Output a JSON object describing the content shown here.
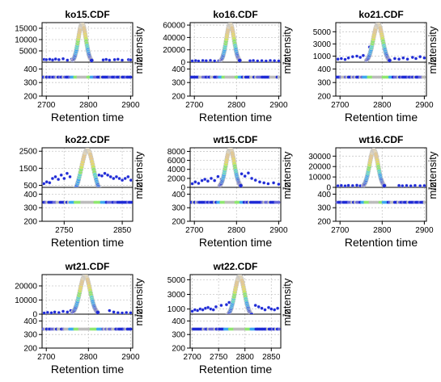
{
  "shared": {
    "xlabel": "Retention time",
    "ylabel_intensity": "intensity",
    "ylabel_mz": "m/z",
    "mz_ticks": [
      200,
      300,
      400
    ],
    "mz_ylim": [
      200,
      450
    ],
    "mz_band": 340,
    "peak_colors": [
      "#1f2bd6",
      "#2f6be8",
      "#3fa9f0",
      "#5fd9c9",
      "#8fe86f",
      "#cde85a",
      "#e8d76f",
      "#e8c98a",
      "#e9d9b5"
    ],
    "point_outline": "#c8c8c8",
    "grid_color": "#c8c8c8",
    "mz_fill_gray": "#bcbcbc"
  },
  "chart_data": [
    {
      "title": "ko15.CDF",
      "type": "scatter",
      "xlim": [
        2690,
        2905
      ],
      "xticks": [
        2700,
        2800,
        2900
      ],
      "ylim": [
        0,
        17500
      ],
      "yticks": [
        5000,
        10000,
        15000
      ],
      "peak": {
        "center": 2785,
        "height": 17000,
        "sigma": 9
      },
      "baseline": [
        [
          2695,
          1200
        ],
        [
          2700,
          1100
        ],
        [
          2708,
          1300
        ],
        [
          2715,
          1000
        ],
        [
          2722,
          1400
        ],
        [
          2730,
          1100
        ],
        [
          2740,
          1500
        ],
        [
          2750,
          900
        ],
        [
          2760,
          1300
        ],
        [
          2835,
          1000
        ],
        [
          2842,
          1200
        ],
        [
          2850,
          900
        ],
        [
          2862,
          1100
        ],
        [
          2870,
          1300
        ],
        [
          2880,
          900
        ],
        [
          2895,
          1100
        ],
        [
          2900,
          1000
        ]
      ]
    },
    {
      "title": "ko16.CDF",
      "type": "scatter",
      "xlim": [
        2690,
        2905
      ],
      "xticks": [
        2700,
        2800,
        2900
      ],
      "ylim": [
        0,
        64000
      ],
      "yticks": [
        0,
        20000,
        40000,
        60000
      ],
      "peak": {
        "center": 2785,
        "height": 62000,
        "sigma": 9
      },
      "baseline": [
        [
          2695,
          2000
        ],
        [
          2703,
          2500
        ],
        [
          2710,
          1800
        ],
        [
          2720,
          2600
        ],
        [
          2728,
          2200
        ],
        [
          2738,
          2800
        ],
        [
          2748,
          2000
        ],
        [
          2758,
          2400
        ],
        [
          2832,
          2200
        ],
        [
          2840,
          2600
        ],
        [
          2850,
          2000
        ],
        [
          2860,
          2400
        ],
        [
          2870,
          1800
        ],
        [
          2880,
          2600
        ],
        [
          2890,
          2200
        ],
        [
          2900,
          2000
        ]
      ]
    },
    {
      "title": "ko21.CDF",
      "type": "scatter",
      "xlim": [
        2690,
        2905
      ],
      "xticks": [
        2700,
        2800,
        2900
      ],
      "ylim": [
        0,
        6500
      ],
      "yticks": [
        1000,
        3000,
        5000
      ],
      "peak": {
        "center": 2790,
        "height": 6300,
        "sigma": 11
      },
      "baseline": [
        [
          2695,
          500
        ],
        [
          2703,
          600
        ],
        [
          2712,
          450
        ],
        [
          2720,
          700
        ],
        [
          2730,
          900
        ],
        [
          2740,
          1000
        ],
        [
          2748,
          800
        ],
        [
          2755,
          1100
        ],
        [
          2765,
          600
        ],
        [
          2770,
          2500
        ],
        [
          2830,
          600
        ],
        [
          2840,
          500
        ],
        [
          2850,
          700
        ],
        [
          2860,
          500
        ],
        [
          2872,
          800
        ],
        [
          2880,
          600
        ],
        [
          2890,
          900
        ],
        [
          2900,
          700
        ]
      ]
    },
    {
      "title": "ko22.CDF",
      "type": "scatter",
      "xlim": [
        2712,
        2868
      ],
      "xticks": [
        2750,
        2850
      ],
      "ylim": [
        380,
        2700
      ],
      "yticks": [
        500,
        1500,
        2500
      ],
      "peak": {
        "center": 2790,
        "height": 2600,
        "sigma": 10
      },
      "baseline": [
        [
          2715,
          600
        ],
        [
          2720,
          700
        ],
        [
          2725,
          650
        ],
        [
          2730,
          900
        ],
        [
          2735,
          1000
        ],
        [
          2740,
          850
        ],
        [
          2745,
          1100
        ],
        [
          2750,
          900
        ],
        [
          2755,
          1200
        ],
        [
          2760,
          1000
        ],
        [
          2810,
          1100
        ],
        [
          2815,
          1050
        ],
        [
          2820,
          1200
        ],
        [
          2825,
          1100
        ],
        [
          2830,
          1000
        ],
        [
          2835,
          900
        ],
        [
          2840,
          1000
        ],
        [
          2845,
          900
        ],
        [
          2850,
          800
        ],
        [
          2855,
          900
        ],
        [
          2860,
          1000
        ],
        [
          2865,
          800
        ]
      ]
    },
    {
      "title": "wt15.CDF",
      "type": "scatter",
      "xlim": [
        2690,
        2905
      ],
      "xticks": [
        2700,
        2800,
        2900
      ],
      "ylim": [
        0,
        8800
      ],
      "yticks": [
        0,
        2000,
        4000,
        6000,
        8000
      ],
      "peak": {
        "center": 2785,
        "height": 8600,
        "sigma": 10
      },
      "baseline": [
        [
          2695,
          800
        ],
        [
          2702,
          1200
        ],
        [
          2710,
          900
        ],
        [
          2718,
          1500
        ],
        [
          2725,
          1800
        ],
        [
          2732,
          1400
        ],
        [
          2740,
          2000
        ],
        [
          2748,
          1500
        ],
        [
          2756,
          2400
        ],
        [
          2764,
          1800
        ],
        [
          2812,
          3000
        ],
        [
          2820,
          2500
        ],
        [
          2828,
          3200
        ],
        [
          2836,
          2000
        ],
        [
          2845,
          1600
        ],
        [
          2855,
          1200
        ],
        [
          2865,
          1000
        ],
        [
          2875,
          800
        ],
        [
          2888,
          1000
        ],
        [
          2900,
          700
        ]
      ]
    },
    {
      "title": "wt16.CDF",
      "type": "scatter",
      "xlim": [
        2690,
        2905
      ],
      "xticks": [
        2700,
        2800,
        2900
      ],
      "ylim": [
        0,
        38000
      ],
      "yticks": [
        0,
        10000,
        20000,
        30000
      ],
      "peak": {
        "center": 2780,
        "height": 36000,
        "sigma": 10
      },
      "baseline": [
        [
          2695,
          1500
        ],
        [
          2703,
          1800
        ],
        [
          2712,
          1400
        ],
        [
          2720,
          1900
        ],
        [
          2730,
          1600
        ],
        [
          2740,
          2000
        ],
        [
          2748,
          1500
        ],
        [
          2840,
          1800
        ],
        [
          2848,
          1500
        ],
        [
          2858,
          1700
        ],
        [
          2868,
          1400
        ],
        [
          2878,
          1800
        ],
        [
          2890,
          1500
        ],
        [
          2900,
          1600
        ]
      ]
    },
    {
      "title": "wt21.CDF",
      "type": "scatter",
      "xlim": [
        2690,
        2905
      ],
      "xticks": [
        2700,
        2800,
        2900
      ],
      "ylim": [
        0,
        28000
      ],
      "yticks": [
        0,
        10000,
        20000
      ],
      "peak": {
        "center": 2792,
        "height": 27500,
        "sigma": 12
      },
      "baseline": [
        [
          2695,
          800
        ],
        [
          2703,
          1200
        ],
        [
          2712,
          900
        ],
        [
          2720,
          1500
        ],
        [
          2730,
          1100
        ],
        [
          2740,
          2000
        ],
        [
          2750,
          1500
        ],
        [
          2758,
          2500
        ],
        [
          2766,
          3000
        ],
        [
          2850,
          2500
        ],
        [
          2860,
          1500
        ],
        [
          2870,
          1000
        ],
        [
          2880,
          800
        ],
        [
          2890,
          1100
        ],
        [
          2900,
          900
        ]
      ]
    },
    {
      "title": "wt22.CDF",
      "type": "scatter",
      "xlim": [
        2696,
        2868
      ],
      "xticks": [
        2700,
        2750,
        2800,
        2850
      ],
      "ylim": [
        300,
        5700
      ],
      "yticks": [
        1000,
        3000,
        5000
      ],
      "peak": {
        "center": 2790,
        "height": 5500,
        "sigma": 9
      },
      "baseline": [
        [
          2700,
          700
        ],
        [
          2705,
          900
        ],
        [
          2710,
          800
        ],
        [
          2715,
          1000
        ],
        [
          2720,
          900
        ],
        [
          2725,
          1100
        ],
        [
          2730,
          1200
        ],
        [
          2735,
          1000
        ],
        [
          2740,
          900
        ],
        [
          2745,
          1300
        ],
        [
          2755,
          1500
        ],
        [
          2765,
          1600
        ],
        [
          2770,
          1900
        ],
        [
          2820,
          1500
        ],
        [
          2826,
          1300
        ],
        [
          2832,
          1100
        ],
        [
          2838,
          900
        ],
        [
          2845,
          1200
        ],
        [
          2850,
          1000
        ],
        [
          2856,
          900
        ],
        [
          2862,
          1100
        ]
      ]
    }
  ]
}
